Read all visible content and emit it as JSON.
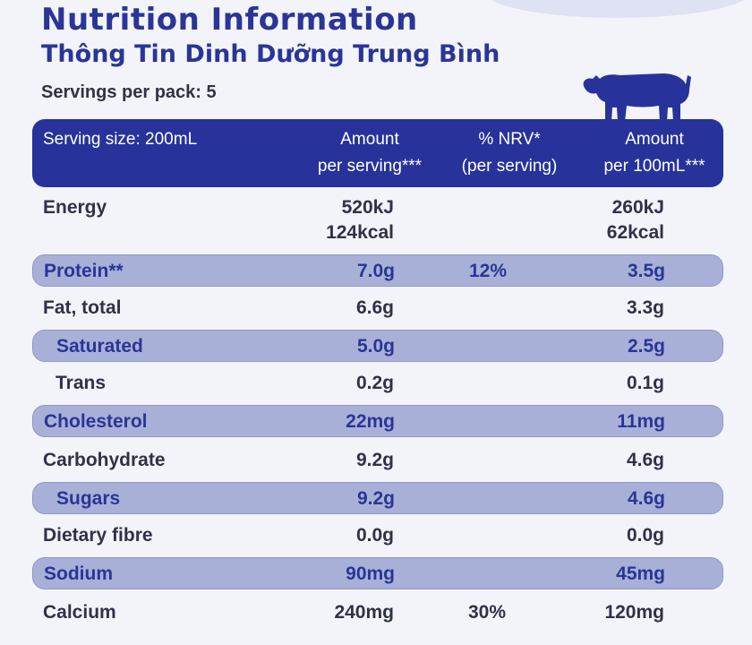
{
  "title": "Nutrition Information",
  "subtitle": "Thông Tin Dinh Dưỡng Trung Bình",
  "servings_per_pack": "Servings per pack: 5",
  "colors": {
    "brand_blue": "#27339a",
    "shaded_row": "#a9b0d8",
    "background": "#f3f4fa"
  },
  "icons": {
    "cow": "cow-icon"
  },
  "header": {
    "serving_size": "Serving size: 200mL",
    "amount_line1": "Amount",
    "amount_line2": "per serving***",
    "nrv_line1": "% NRV*",
    "nrv_line2": "(per serving)",
    "per100_line1": "Amount",
    "per100_line2": "per 100mL***"
  },
  "energy": {
    "name": "Energy",
    "amount_kj": "520kJ",
    "amount_kcal": "124kcal",
    "per100_kj": "260kJ",
    "per100_kcal": "62kcal"
  },
  "rows": [
    {
      "name": "Protein**",
      "amount": "7.0g",
      "nrv": "12%",
      "per100": "3.5g"
    },
    {
      "name": "Fat, total",
      "amount": "6.6g",
      "nrv": "",
      "per100": "3.3g"
    },
    {
      "name": "Saturated",
      "amount": "5.0g",
      "nrv": "",
      "per100": "2.5g"
    },
    {
      "name": "Trans",
      "amount": "0.2g",
      "nrv": "",
      "per100": "0.1g"
    },
    {
      "name": "Cholesterol",
      "amount": "22mg",
      "nrv": "",
      "per100": "11mg"
    },
    {
      "name": "Carbohydrate",
      "amount": "9.2g",
      "nrv": "",
      "per100": "4.6g"
    },
    {
      "name": "Sugars",
      "amount": "9.2g",
      "nrv": "",
      "per100": "4.6g"
    },
    {
      "name": "Dietary fibre",
      "amount": "0.0g",
      "nrv": "",
      "per100": "0.0g"
    },
    {
      "name": "Sodium",
      "amount": "90mg",
      "nrv": "",
      "per100": "45mg"
    },
    {
      "name": "Calcium",
      "amount": "240mg",
      "nrv": "30%",
      "per100": "120mg"
    }
  ]
}
